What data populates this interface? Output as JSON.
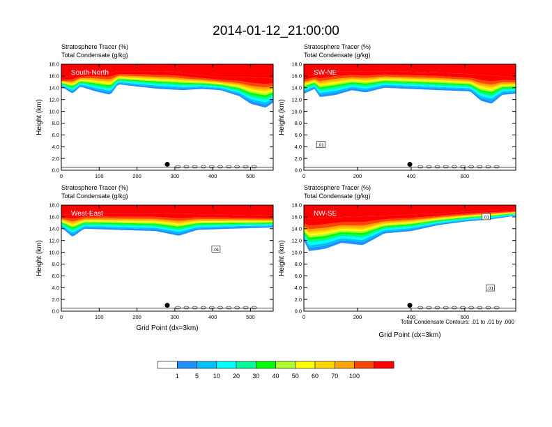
{
  "title": "2014-01-12_21:00:00",
  "footnote": "Total Condensate Contours: .01 to .01 by .000",
  "colorbar": {
    "labels": [
      "1",
      "5",
      "10",
      "20",
      "30",
      "40",
      "50",
      "60",
      "70",
      "100"
    ],
    "colors": [
      "#ffffff",
      "#1e90ff",
      "#00bfff",
      "#00ffff",
      "#00fa9a",
      "#00ff00",
      "#adff2f",
      "#ffff00",
      "#ffd700",
      "#ffa500",
      "#ff4500",
      "#ff0000"
    ]
  },
  "chart_data": [
    {
      "type": "heatmap",
      "panel_label": "South-North",
      "left_title": "Stratosphere Tracer   (%)",
      "left_subtitle": "Total Condensate   (g/kg)",
      "ylabel": "Height (km)",
      "xlabel": "",
      "xlim": [
        0,
        560
      ],
      "ylim": [
        0,
        18
      ],
      "xticks": [
        "0",
        "100",
        "200",
        "300",
        "400",
        "500"
      ],
      "xtick_values": [
        0,
        100,
        200,
        300,
        400,
        500
      ],
      "yticks": [
        "0.0",
        "2.0",
        "4.0",
        "6.0",
        "8.0",
        "10.0",
        "12.0",
        "14.0",
        "16.0",
        "18.0"
      ],
      "marker": {
        "x": 280,
        "y": 1.0
      },
      "tracer_top": [
        [
          0,
          15.6
        ],
        [
          40,
          16.2
        ],
        [
          80,
          16.6
        ],
        [
          120,
          16.6
        ],
        [
          160,
          16.8
        ],
        [
          240,
          16.8
        ],
        [
          300,
          16.7
        ],
        [
          360,
          16.2
        ],
        [
          420,
          15.8
        ],
        [
          480,
          15.8
        ],
        [
          560,
          15.6
        ]
      ],
      "tracer_bottom": [
        [
          0,
          14.2
        ],
        [
          30,
          13.0
        ],
        [
          50,
          14.2
        ],
        [
          90,
          13.4
        ],
        [
          130,
          12.8
        ],
        [
          150,
          14.6
        ],
        [
          200,
          14.2
        ],
        [
          260,
          13.8
        ],
        [
          320,
          13.6
        ],
        [
          370,
          13.8
        ],
        [
          420,
          13.6
        ],
        [
          470,
          12.6
        ],
        [
          500,
          11.3
        ],
        [
          540,
          10.6
        ],
        [
          560,
          11.5
        ]
      ],
      "contour_labels": []
    },
    {
      "type": "heatmap",
      "panel_label": "SW-NE",
      "left_title": "Stratosphere Tracer   (%)",
      "left_subtitle": "Total Condensate   (g/kg)",
      "ylabel": "Height (km)",
      "xlabel": "",
      "xlim": [
        0,
        790
      ],
      "ylim": [
        0,
        18
      ],
      "xticks": [
        "0",
        "200",
        "400",
        "600"
      ],
      "xtick_values": [
        0,
        200,
        400,
        600
      ],
      "yticks": [
        "0.0",
        "2.0",
        "4.0",
        "6.0",
        "8.0",
        "10.0",
        "12.0",
        "14.0",
        "16.0",
        "18.0"
      ],
      "marker": {
        "x": 395,
        "y": 1.0
      },
      "tracer_top": [
        [
          0,
          16.0
        ],
        [
          60,
          16.4
        ],
        [
          120,
          16.8
        ],
        [
          300,
          16.8
        ],
        [
          500,
          16.6
        ],
        [
          650,
          16.2
        ],
        [
          790,
          15.8
        ]
      ],
      "tracer_bottom": [
        [
          0,
          13.0
        ],
        [
          40,
          13.8
        ],
        [
          60,
          12.4
        ],
        [
          120,
          12.8
        ],
        [
          180,
          13.6
        ],
        [
          230,
          13.2
        ],
        [
          300,
          14.0
        ],
        [
          400,
          13.8
        ],
        [
          500,
          13.6
        ],
        [
          620,
          13.4
        ],
        [
          660,
          11.8
        ],
        [
          700,
          11.3
        ],
        [
          740,
          12.8
        ],
        [
          790,
          13.0
        ]
      ],
      "contour_labels": [
        ".01"
      ]
    },
    {
      "type": "heatmap",
      "panel_label": "West-East",
      "left_title": "Stratosphere Tracer   (%)",
      "left_subtitle": "Total Condensate   (g/kg)",
      "ylabel": "Height (km)",
      "xlabel": "Grid Point (dx=3km)",
      "xlim": [
        0,
        560
      ],
      "ylim": [
        0,
        18
      ],
      "xticks": [
        "0",
        "100",
        "200",
        "300",
        "400",
        "500"
      ],
      "xtick_values": [
        0,
        100,
        200,
        300,
        400,
        500
      ],
      "yticks": [
        "0.0",
        "2.0",
        "4.0",
        "6.0",
        "8.0",
        "10.0",
        "12.0",
        "14.0",
        "16.0",
        "18.0"
      ],
      "marker": {
        "x": 280,
        "y": 1.0
      },
      "tracer_top": [
        [
          0,
          16.4
        ],
        [
          100,
          16.6
        ],
        [
          250,
          16.6
        ],
        [
          400,
          16.4
        ],
        [
          560,
          16.2
        ]
      ],
      "tracer_bottom": [
        [
          0,
          14.2
        ],
        [
          30,
          12.6
        ],
        [
          60,
          14.0
        ],
        [
          150,
          13.8
        ],
        [
          250,
          13.6
        ],
        [
          310,
          12.8
        ],
        [
          360,
          13.8
        ],
        [
          450,
          14.0
        ],
        [
          560,
          14.2
        ]
      ],
      "contour_labels": [
        ".01"
      ]
    },
    {
      "type": "heatmap",
      "panel_label": "NW-SE",
      "left_title": "Stratosphere Tracer   (%)",
      "left_subtitle": "Total Condensate   (g/kg)",
      "ylabel": "Height (km)",
      "xlabel": "Grid Point (dx=3km)",
      "xlim": [
        0,
        790
      ],
      "ylim": [
        0,
        18
      ],
      "xticks": [
        "0",
        "200",
        "400",
        "600"
      ],
      "xtick_values": [
        0,
        200,
        400,
        600
      ],
      "yticks": [
        "0.0",
        "2.0",
        "4.0",
        "6.0",
        "8.0",
        "10.0",
        "12.0",
        "14.0",
        "16.0",
        "18.0"
      ],
      "marker": {
        "x": 395,
        "y": 1.0
      },
      "tracer_top": [
        [
          0,
          15.6
        ],
        [
          150,
          16.0
        ],
        [
          300,
          16.2
        ],
        [
          500,
          16.6
        ],
        [
          650,
          17.0
        ],
        [
          790,
          17.2
        ]
      ],
      "tracer_bottom": [
        [
          0,
          12.0
        ],
        [
          20,
          10.2
        ],
        [
          80,
          10.6
        ],
        [
          140,
          11.6
        ],
        [
          220,
          11.2
        ],
        [
          300,
          13.2
        ],
        [
          400,
          13.6
        ],
        [
          500,
          14.6
        ],
        [
          600,
          15.2
        ],
        [
          700,
          15.6
        ],
        [
          790,
          16.2
        ]
      ],
      "contour_labels": [
        ".01",
        ".01"
      ]
    }
  ]
}
